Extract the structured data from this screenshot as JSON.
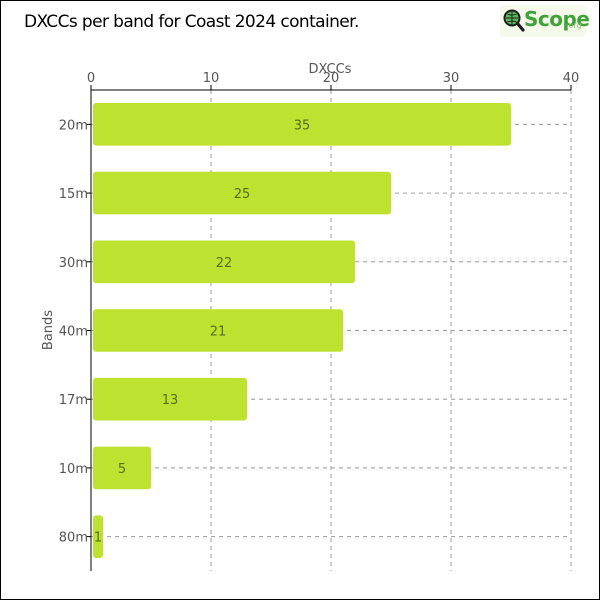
{
  "title": "DXCCs per band for Coast 2024 container.",
  "logo": {
    "text": "Scope",
    "suffix": ".org"
  },
  "chart_data": {
    "type": "bar",
    "orientation": "horizontal",
    "title": "DXCCs per band for Coast 2024 container.",
    "xlabel": "DXCCs",
    "ylabel": "Bands",
    "xlim": [
      0,
      40
    ],
    "xticks": [
      0,
      10,
      20,
      30,
      40
    ],
    "x_axis_position": "top",
    "grid": true,
    "categories": [
      "20m",
      "15m",
      "30m",
      "40m",
      "17m",
      "10m",
      "80m"
    ],
    "values": [
      35,
      25,
      22,
      21,
      13,
      5,
      1
    ],
    "bar_color": "#bde22f",
    "label_color": "#5b6b1f"
  }
}
